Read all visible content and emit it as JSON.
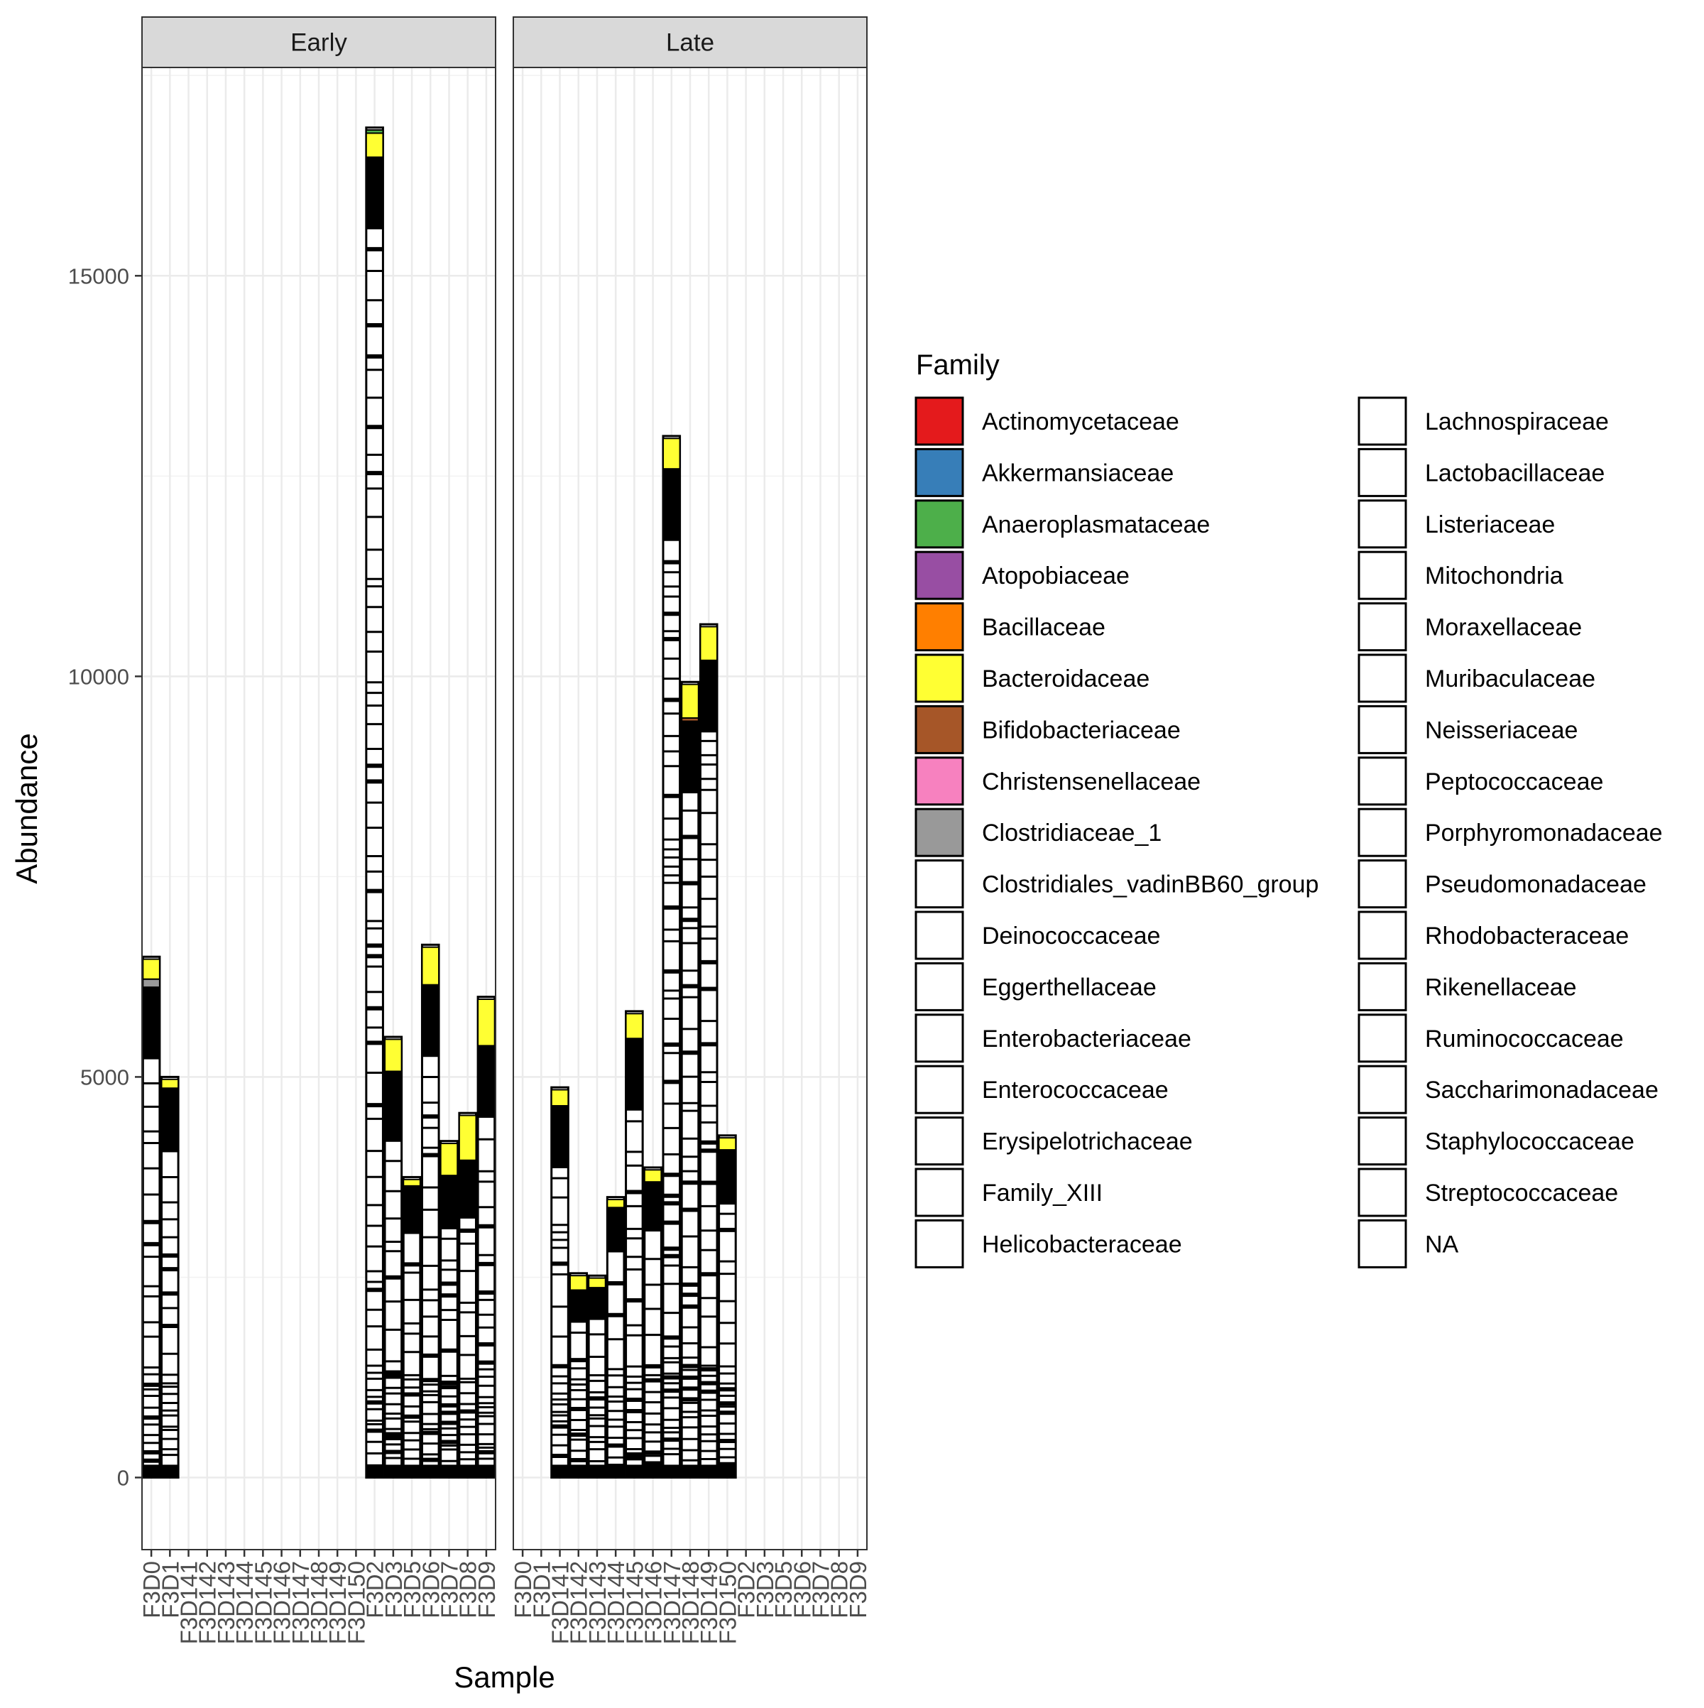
{
  "chart_data": {
    "type": "bar",
    "stacked": true,
    "ylabel": "Abundance",
    "xlabel": "Sample",
    "ylim": [
      -900,
      17600
    ],
    "yticks": [
      0,
      5000,
      10000,
      15000
    ],
    "ytick_labels": [
      "0",
      "5000",
      "10000",
      "15000"
    ],
    "grid": true,
    "legend_position": "right",
    "facets": [
      "Early",
      "Late"
    ],
    "categories": [
      "F3D0",
      "F3D1",
      "F3D141",
      "F3D142",
      "F3D143",
      "F3D144",
      "F3D145",
      "F3D146",
      "F3D147",
      "F3D148",
      "F3D149",
      "F3D150",
      "F3D2",
      "F3D3",
      "F3D5",
      "F3D6",
      "F3D7",
      "F3D8",
      "F3D9"
    ],
    "panels": [
      {
        "facet": "Early",
        "bars": [
          {
            "sample": "F3D0",
            "total": 6500,
            "Bacteroidaceae": 250,
            "Clostridiaceae_1": 100
          },
          {
            "sample": "F3D1",
            "total": 5000,
            "Bacteroidaceae": 110
          },
          {
            "sample": "F3D2",
            "total": 16850,
            "Bacteroidaceae": 300,
            "Anaeroplasmataceae": 40
          },
          {
            "sample": "F3D3",
            "total": 5500,
            "Bacteroidaceae": 400
          },
          {
            "sample": "F3D5",
            "total": 3750,
            "Bacteroidaceae": 80
          },
          {
            "sample": "F3D6",
            "total": 6650,
            "Bacteroidaceae": 470
          },
          {
            "sample": "F3D7",
            "total": 4200,
            "Bacteroidaceae": 400
          },
          {
            "sample": "F3D8",
            "total": 4550,
            "Bacteroidaceae": 560
          },
          {
            "sample": "F3D9",
            "total": 6000,
            "Bacteroidaceae": 580
          }
        ]
      },
      {
        "facet": "Late",
        "bars": [
          {
            "sample": "F3D141",
            "total": 4870,
            "Bacteroidaceae": 200
          },
          {
            "sample": "F3D142",
            "total": 2550,
            "Bacteroidaceae": 180
          },
          {
            "sample": "F3D143",
            "total": 2520,
            "Bacteroidaceae": 120
          },
          {
            "sample": "F3D144",
            "total": 3500,
            "Bacteroidaceae": 100
          },
          {
            "sample": "F3D145",
            "total": 5820,
            "Bacteroidaceae": 310
          },
          {
            "sample": "F3D146",
            "total": 3870,
            "Bacteroidaceae": 150
          },
          {
            "sample": "F3D147",
            "total": 13000,
            "Bacteroidaceae": 380
          },
          {
            "sample": "F3D148",
            "total": 9930,
            "Bacteroidaceae": 420,
            "Bifidobacteriaceae": 40
          },
          {
            "sample": "F3D149",
            "total": 10650,
            "Bacteroidaceae": 420
          },
          {
            "sample": "F3D150",
            "total": 4270,
            "Bacteroidaceae": 150
          }
        ]
      }
    ],
    "legend": {
      "title": "Family",
      "entries": [
        {
          "name": "Actinomycetaceae",
          "color": "#E41A1C"
        },
        {
          "name": "Akkermansiaceae",
          "color": "#377EB8"
        },
        {
          "name": "Anaeroplasmataceae",
          "color": "#4DAF4A"
        },
        {
          "name": "Atopobiaceae",
          "color": "#984EA3"
        },
        {
          "name": "Bacillaceae",
          "color": "#FF7F00"
        },
        {
          "name": "Bacteroidaceae",
          "color": "#FFFF33"
        },
        {
          "name": "Bifidobacteriaceae",
          "color": "#A65628"
        },
        {
          "name": "Christensenellaceae",
          "color": "#F781BF"
        },
        {
          "name": "Clostridiaceae_1",
          "color": "#999999"
        },
        {
          "name": "Clostridiales_vadinBB60_group",
          "color": "#FFFFFF"
        },
        {
          "name": "Deinococcaceae",
          "color": "#FFFFFF"
        },
        {
          "name": "Eggerthellaceae",
          "color": "#FFFFFF"
        },
        {
          "name": "Enterobacteriaceae",
          "color": "#FFFFFF"
        },
        {
          "name": "Enterococcaceae",
          "color": "#FFFFFF"
        },
        {
          "name": "Erysipelotrichaceae",
          "color": "#FFFFFF"
        },
        {
          "name": "Family_XIII",
          "color": "#FFFFFF"
        },
        {
          "name": "Helicobacteraceae",
          "color": "#FFFFFF"
        },
        {
          "name": "Lachnospiraceae",
          "color": "#FFFFFF"
        },
        {
          "name": "Lactobacillaceae",
          "color": "#FFFFFF"
        },
        {
          "name": "Listeriaceae",
          "color": "#FFFFFF"
        },
        {
          "name": "Mitochondria",
          "color": "#FFFFFF"
        },
        {
          "name": "Moraxellaceae",
          "color": "#FFFFFF"
        },
        {
          "name": "Muribaculaceae",
          "color": "#FFFFFF"
        },
        {
          "name": "Neisseriaceae",
          "color": "#FFFFFF"
        },
        {
          "name": "Peptococcaceae",
          "color": "#FFFFFF"
        },
        {
          "name": "Porphyromonadaceae",
          "color": "#FFFFFF"
        },
        {
          "name": "Pseudomonadaceae",
          "color": "#FFFFFF"
        },
        {
          "name": "Rhodobacteraceae",
          "color": "#FFFFFF"
        },
        {
          "name": "Rikenellaceae",
          "color": "#FFFFFF"
        },
        {
          "name": "Ruminococcaceae",
          "color": "#FFFFFF"
        },
        {
          "name": "Saccharimonadaceae",
          "color": "#FFFFFF"
        },
        {
          "name": "Staphylococcaceae",
          "color": "#FFFFFF"
        },
        {
          "name": "Streptococcaceae",
          "color": "#FFFFFF"
        },
        {
          "name": "NA",
          "color": "#FFFFFF"
        }
      ]
    }
  }
}
